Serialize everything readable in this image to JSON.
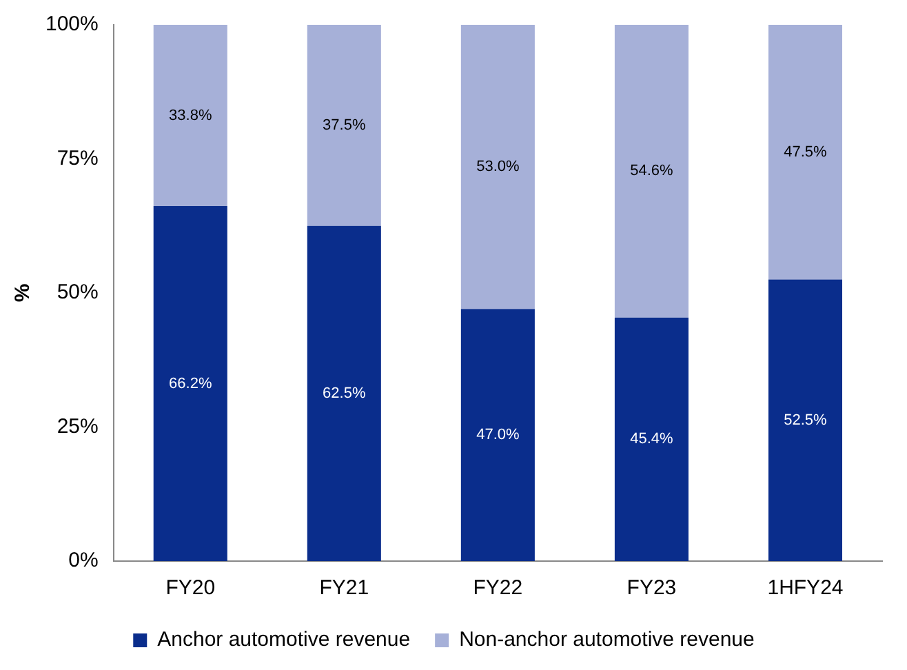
{
  "chart_data": {
    "type": "bar",
    "stacked": true,
    "ylabel": "%",
    "categories": [
      "FY20",
      "FY21",
      "FY22",
      "FY23",
      "1HFY24"
    ],
    "series": [
      {
        "name": "Anchor automotive revenue",
        "color": "#0a2d8c",
        "values": [
          66.2,
          62.5,
          47.0,
          45.4,
          52.5
        ],
        "value_labels": [
          "66.2%",
          "62.5%",
          "47.0%",
          "45.4%",
          "52.5%"
        ]
      },
      {
        "name": "Non-anchor automotive revenue",
        "color": "#a6b0d8",
        "values": [
          33.8,
          37.5,
          53.0,
          54.6,
          47.5
        ],
        "value_labels": [
          "33.8%",
          "37.5%",
          "53.0%",
          "54.6%",
          "47.5%"
        ]
      }
    ],
    "ylim": [
      0,
      100
    ],
    "yticks": [
      {
        "value": 0,
        "label": "0%"
      },
      {
        "value": 25,
        "label": "25%"
      },
      {
        "value": 50,
        "label": "50%"
      },
      {
        "value": 75,
        "label": "75%"
      },
      {
        "value": 100,
        "label": "100%"
      }
    ],
    "grid": false,
    "legend": "bottom"
  }
}
